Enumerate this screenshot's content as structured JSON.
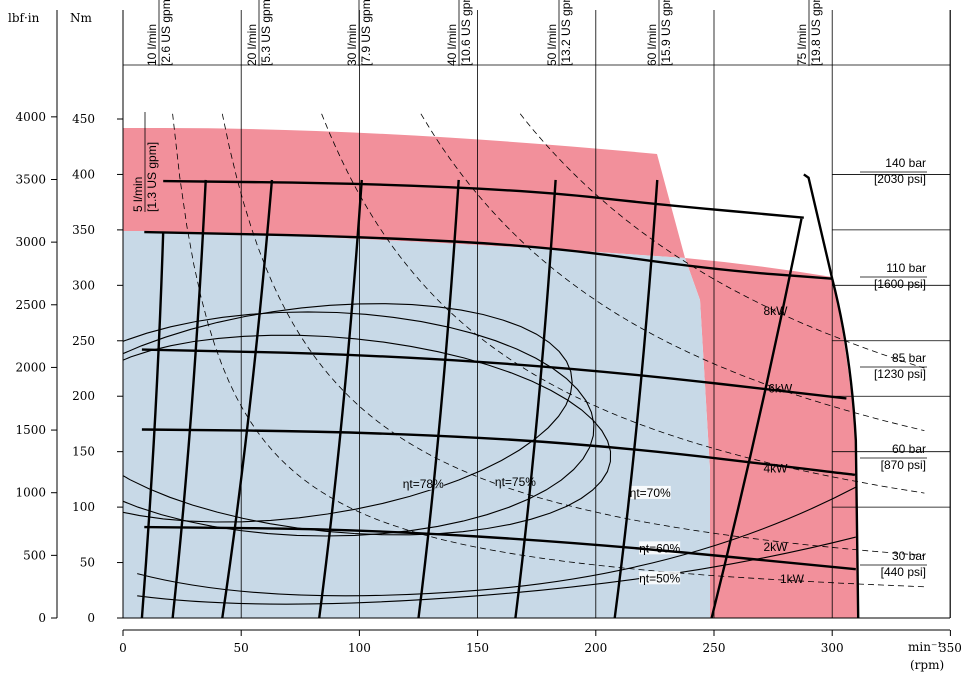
{
  "chart_data": {
    "type": "line",
    "title": "",
    "xlabel": "min⁻¹",
    "xlabel_unit": "(rpm)",
    "ylabel_left_outer": "lbf·in",
    "ylabel_left_inner": "Nm",
    "xlim": [
      0,
      350
    ],
    "ylim": [
      0,
      450
    ],
    "x_ticks": [
      0,
      50,
      100,
      150,
      200,
      250,
      300,
      350
    ],
    "x_tick_labels": [
      "0",
      "50",
      "100",
      "150",
      "200",
      "250",
      "300",
      "350"
    ],
    "y_ticks_nm": [
      0,
      50,
      100,
      150,
      200,
      250,
      300,
      350,
      400,
      450
    ],
    "y_tick_labels_nm": [
      "0",
      "50",
      "100",
      "150",
      "200",
      "250",
      "300",
      "350",
      "400",
      "450"
    ],
    "y_ticks_lbfin": [
      0,
      500,
      1000,
      1500,
      2000,
      2500,
      3000,
      3500,
      4000
    ],
    "y_tick_labels_lbfin": [
      "0",
      "500",
      "1000",
      "1500",
      "2000",
      "2500",
      "3000",
      "3500",
      "4000"
    ],
    "grid": true,
    "colors": {
      "continuous_region": "#c8d9e7",
      "intermittent_region": "#f2909b",
      "curve": "#000000"
    },
    "flow_lines": [
      {
        "label": "5 l/min",
        "label_us": "[1.3 US gpm]",
        "x_top": 17,
        "x_bottom": 8
      },
      {
        "label": "10 l/min",
        "label_us": "[2.6 US gpm]",
        "x_top": 35,
        "x_bottom": 21
      },
      {
        "label": "20 l/min",
        "label_us": "[5.3 US gpm]",
        "x_top": 63,
        "x_bottom": 42
      },
      {
        "label": "30 l/min",
        "label_us": "[7.9 US gpm]",
        "x_top": 101,
        "x_bottom": 83
      },
      {
        "label": "40 l/min",
        "label_us": "[10.6 US gpm]",
        "x_top": 142,
        "x_bottom": 125
      },
      {
        "label": "50 l/min",
        "label_us": "[13.2 US gpm]",
        "x_top": 183,
        "x_bottom": 166
      },
      {
        "label": "60 l/min",
        "label_us": "[15.9 US gpm]",
        "x_top": 226,
        "x_bottom": 208
      },
      {
        "label": "75 l/min",
        "label_us": "[19.8 US gpm]",
        "x_top": 287,
        "x_bottom": 249
      }
    ],
    "pressure_curves": [
      {
        "label": "140 bar",
        "label_psi": "[2030 psi]",
        "points": [
          [
            17,
            394
          ],
          [
            100,
            392
          ],
          [
            175,
            385
          ],
          [
            226,
            373
          ],
          [
            288,
            361
          ]
        ]
      },
      {
        "label": "110 bar",
        "label_psi": "[1600 psi]",
        "points": [
          [
            9,
            348
          ],
          [
            100,
            344
          ],
          [
            180,
            335
          ],
          [
            250,
            314
          ],
          [
            300,
            306
          ]
        ]
      },
      {
        "label": "85 bar",
        "label_psi": "[1230 psi]",
        "points": [
          [
            8,
            242
          ],
          [
            100,
            238
          ],
          [
            200,
            224
          ],
          [
            306,
            198
          ]
        ]
      },
      {
        "label": "60 bar",
        "label_psi": "[870 psi]",
        "points": [
          [
            8,
            170
          ],
          [
            100,
            168
          ],
          [
            200,
            157
          ],
          [
            310,
            129
          ]
        ]
      },
      {
        "label": "30 bar",
        "label_psi": "[440 psi]",
        "points": [
          [
            9,
            82
          ],
          [
            100,
            80
          ],
          [
            200,
            67
          ],
          [
            310,
            44
          ]
        ]
      }
    ],
    "power_curves": [
      {
        "label": "1kW",
        "power_kw": 1
      },
      {
        "label": "2kW",
        "power_kw": 2
      },
      {
        "label": "4kW",
        "power_kw": 4
      },
      {
        "label": "6kW",
        "power_kw": 6
      },
      {
        "label": "8kW",
        "power_kw": 8
      }
    ],
    "efficiency_contours": [
      {
        "label": "ηt=50%"
      },
      {
        "label": "ηt=60%"
      },
      {
        "label": "ηt=70%"
      },
      {
        "label": "ηt=75%"
      },
      {
        "label": "ηt=78%"
      }
    ]
  }
}
